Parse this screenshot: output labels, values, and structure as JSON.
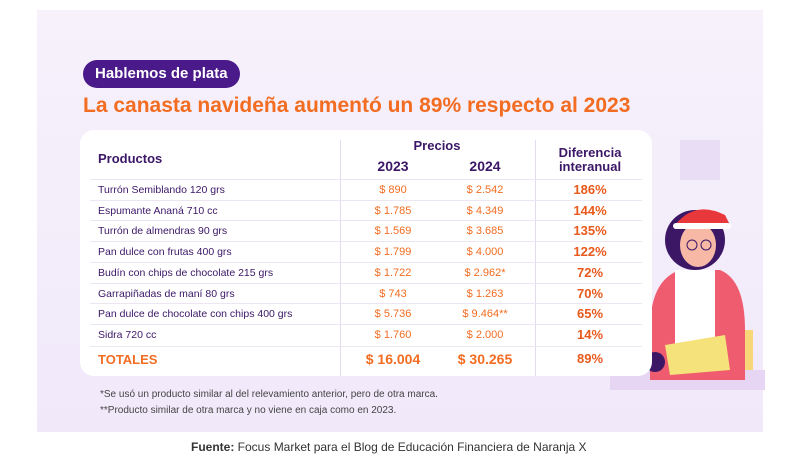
{
  "badge": "Hablemos de plata",
  "title": "La canasta navideña aumentó un 89% respecto al 2023",
  "table": {
    "headers": {
      "product": "Productos",
      "prices": "Precios",
      "y2023": "2023",
      "y2024": "2024",
      "diff1": "Diferencia",
      "diff2": "interanual"
    },
    "rows": [
      {
        "product": "Turrón Semiblando 120 grs",
        "p2023": "$ 890",
        "p2024": "$ 2.542",
        "diff": "186%"
      },
      {
        "product": "Espumante Ananá 710 cc",
        "p2023": "$ 1.785",
        "p2024": "$ 4.349",
        "diff": "144%"
      },
      {
        "product": "Turrón de almendras 90 grs",
        "p2023": "$ 1.569",
        "p2024": "$ 3.685",
        "diff": "135%"
      },
      {
        "product": "Pan dulce con frutas 400 grs",
        "p2023": "$ 1.799",
        "p2024": "$ 4.000",
        "diff": "122%"
      },
      {
        "product": "Budín con chips de chocolate 215 grs",
        "p2023": "$ 1.722",
        "p2024": "$ 2.962*",
        "diff": "72%"
      },
      {
        "product": "Garrapiñadas de maní 80 grs",
        "p2023": "$ 743",
        "p2024": "$ 1.263",
        "diff": "70%"
      },
      {
        "product": "Pan dulce de chocolate con chips 400 grs",
        "p2023": "$ 5.736",
        "p2024": "$ 9.464**",
        "diff": "65%"
      },
      {
        "product": "Sidra 720 cc",
        "p2023": "$ 1.760",
        "p2024": "$ 2.000",
        "diff": "14%"
      }
    ],
    "totals": {
      "label": "TOTALES",
      "p2023": "$ 16.004",
      "p2024": "$ 30.265",
      "diff": "89%"
    }
  },
  "notes": [
    "*Se usó un producto similar al del relevamiento anterior, pero de otra marca.",
    "**Producto similar de otra marca y no viene en caja como en 2023."
  ],
  "source": {
    "label": "Fuente:",
    "text": " Focus Market para el Blog de Educación Financiera de Naranja X"
  }
}
